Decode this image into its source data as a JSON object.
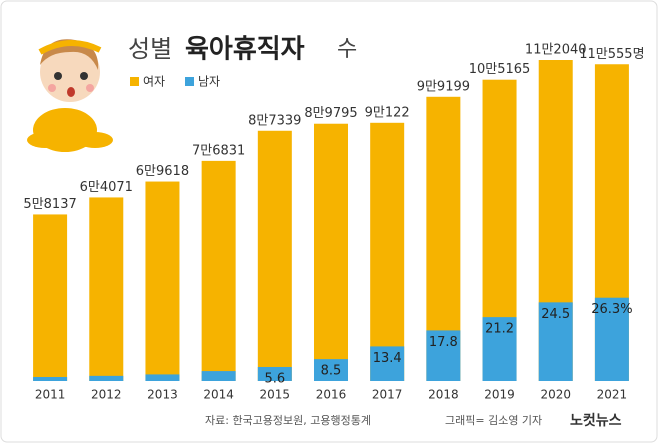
{
  "chart_data": {
    "type": "bar",
    "title": "성별",
    "title_emphasis": "육아휴직자",
    "title_suffix": "수",
    "categories": [
      "2011",
      "2012",
      "2013",
      "2014",
      "2015",
      "2016",
      "2017",
      "2018",
      "2019",
      "2020",
      "2021"
    ],
    "values": [
      58137,
      64071,
      69618,
      76831,
      87339,
      89795,
      90122,
      99199,
      105165,
      112040,
      110555
    ],
    "value_labels": [
      "5만8137",
      "6만4071",
      "6만9618",
      "7만6831",
      "8만7339",
      "8만9795",
      "9만122",
      "9만9199",
      "10만5165",
      "11만2040",
      "11만555명"
    ],
    "legend": [
      {
        "name": "여자",
        "color": "#f6b300"
      },
      {
        "name": "남자",
        "color": "#3da3dc"
      }
    ],
    "male_share": {
      "values": [
        2.4,
        2.8,
        3.3,
        4.5,
        5.6,
        8.5,
        13.4,
        17.8,
        21.2,
        24.5,
        26.3
      ],
      "value_labels": [
        null,
        null,
        null,
        null,
        "5.6",
        "8.5",
        "13.4",
        "17.8",
        "21.2",
        "24.5",
        "26.3%"
      ]
    },
    "source": "자료: 한국고용정보원, 고용행정통계",
    "credit": "그래픽= 김소영 기자",
    "logo": "노컷뉴스"
  }
}
